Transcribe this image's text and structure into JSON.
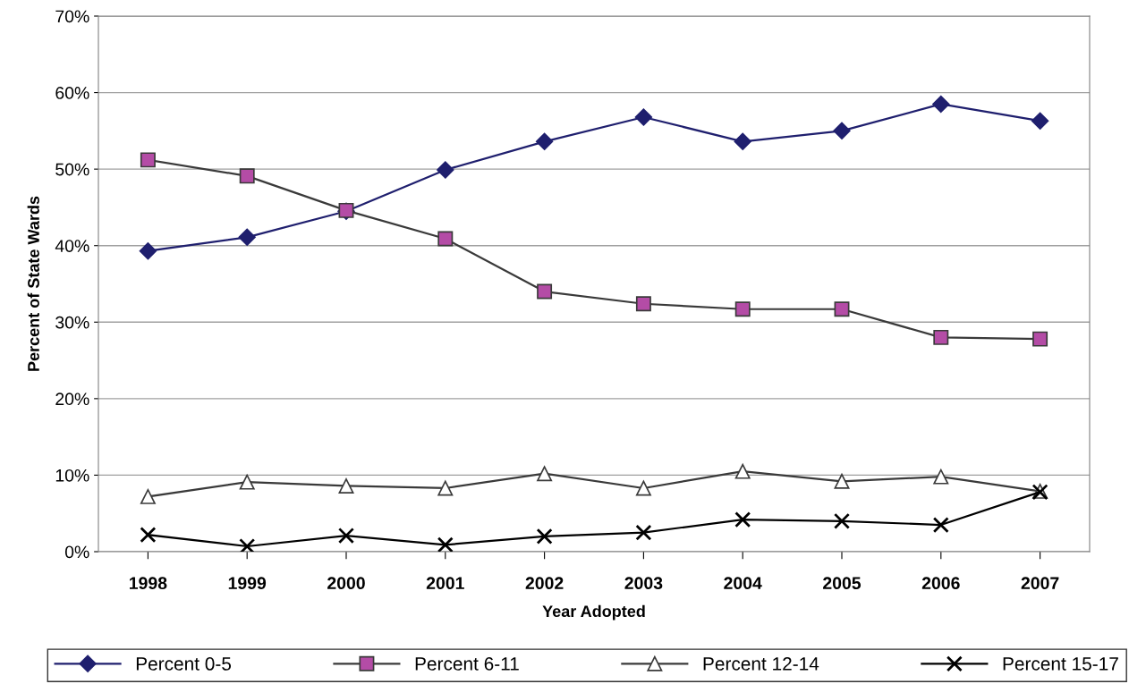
{
  "chart_data": {
    "type": "line",
    "xlabel": "Year Adopted",
    "ylabel": "Percent of State Wards",
    "categories": [
      "1998",
      "1999",
      "2000",
      "2001",
      "2002",
      "2003",
      "2004",
      "2005",
      "2006",
      "2007"
    ],
    "series": [
      {
        "name": "Percent 0-5",
        "color": "#1f1f6e",
        "marker": "diamond",
        "values": [
          39.3,
          41.1,
          44.5,
          49.9,
          53.6,
          56.8,
          53.6,
          55.0,
          58.5,
          56.3
        ]
      },
      {
        "name": "Percent 6-11",
        "color": "#b44ca6",
        "marker": "square",
        "values": [
          51.2,
          49.1,
          44.6,
          40.9,
          34.0,
          32.4,
          31.7,
          31.7,
          28.0,
          27.8
        ]
      },
      {
        "name": "Percent 12-14",
        "color": "#3a3a3a",
        "marker": "triangle",
        "values": [
          7.2,
          9.1,
          8.6,
          8.3,
          10.2,
          8.3,
          10.5,
          9.2,
          9.8,
          7.9
        ]
      },
      {
        "name": "Percent 15-17",
        "color": "#000000",
        "marker": "cross",
        "values": [
          2.2,
          0.7,
          2.1,
          0.9,
          2.0,
          2.5,
          4.2,
          4.0,
          3.5,
          7.8
        ]
      }
    ],
    "ylim": [
      0,
      70
    ],
    "yticks": [
      {
        "value": 0,
        "label": "0%"
      },
      {
        "value": 10,
        "label": "10%"
      },
      {
        "value": 20,
        "label": "20%"
      },
      {
        "value": 30,
        "label": "30%"
      },
      {
        "value": 40,
        "label": "40%"
      },
      {
        "value": 50,
        "label": "50%"
      },
      {
        "value": 60,
        "label": "60%"
      },
      {
        "value": 70,
        "label": "70%"
      }
    ],
    "grid": "y",
    "legend": "bottom",
    "line_style": "solid"
  }
}
